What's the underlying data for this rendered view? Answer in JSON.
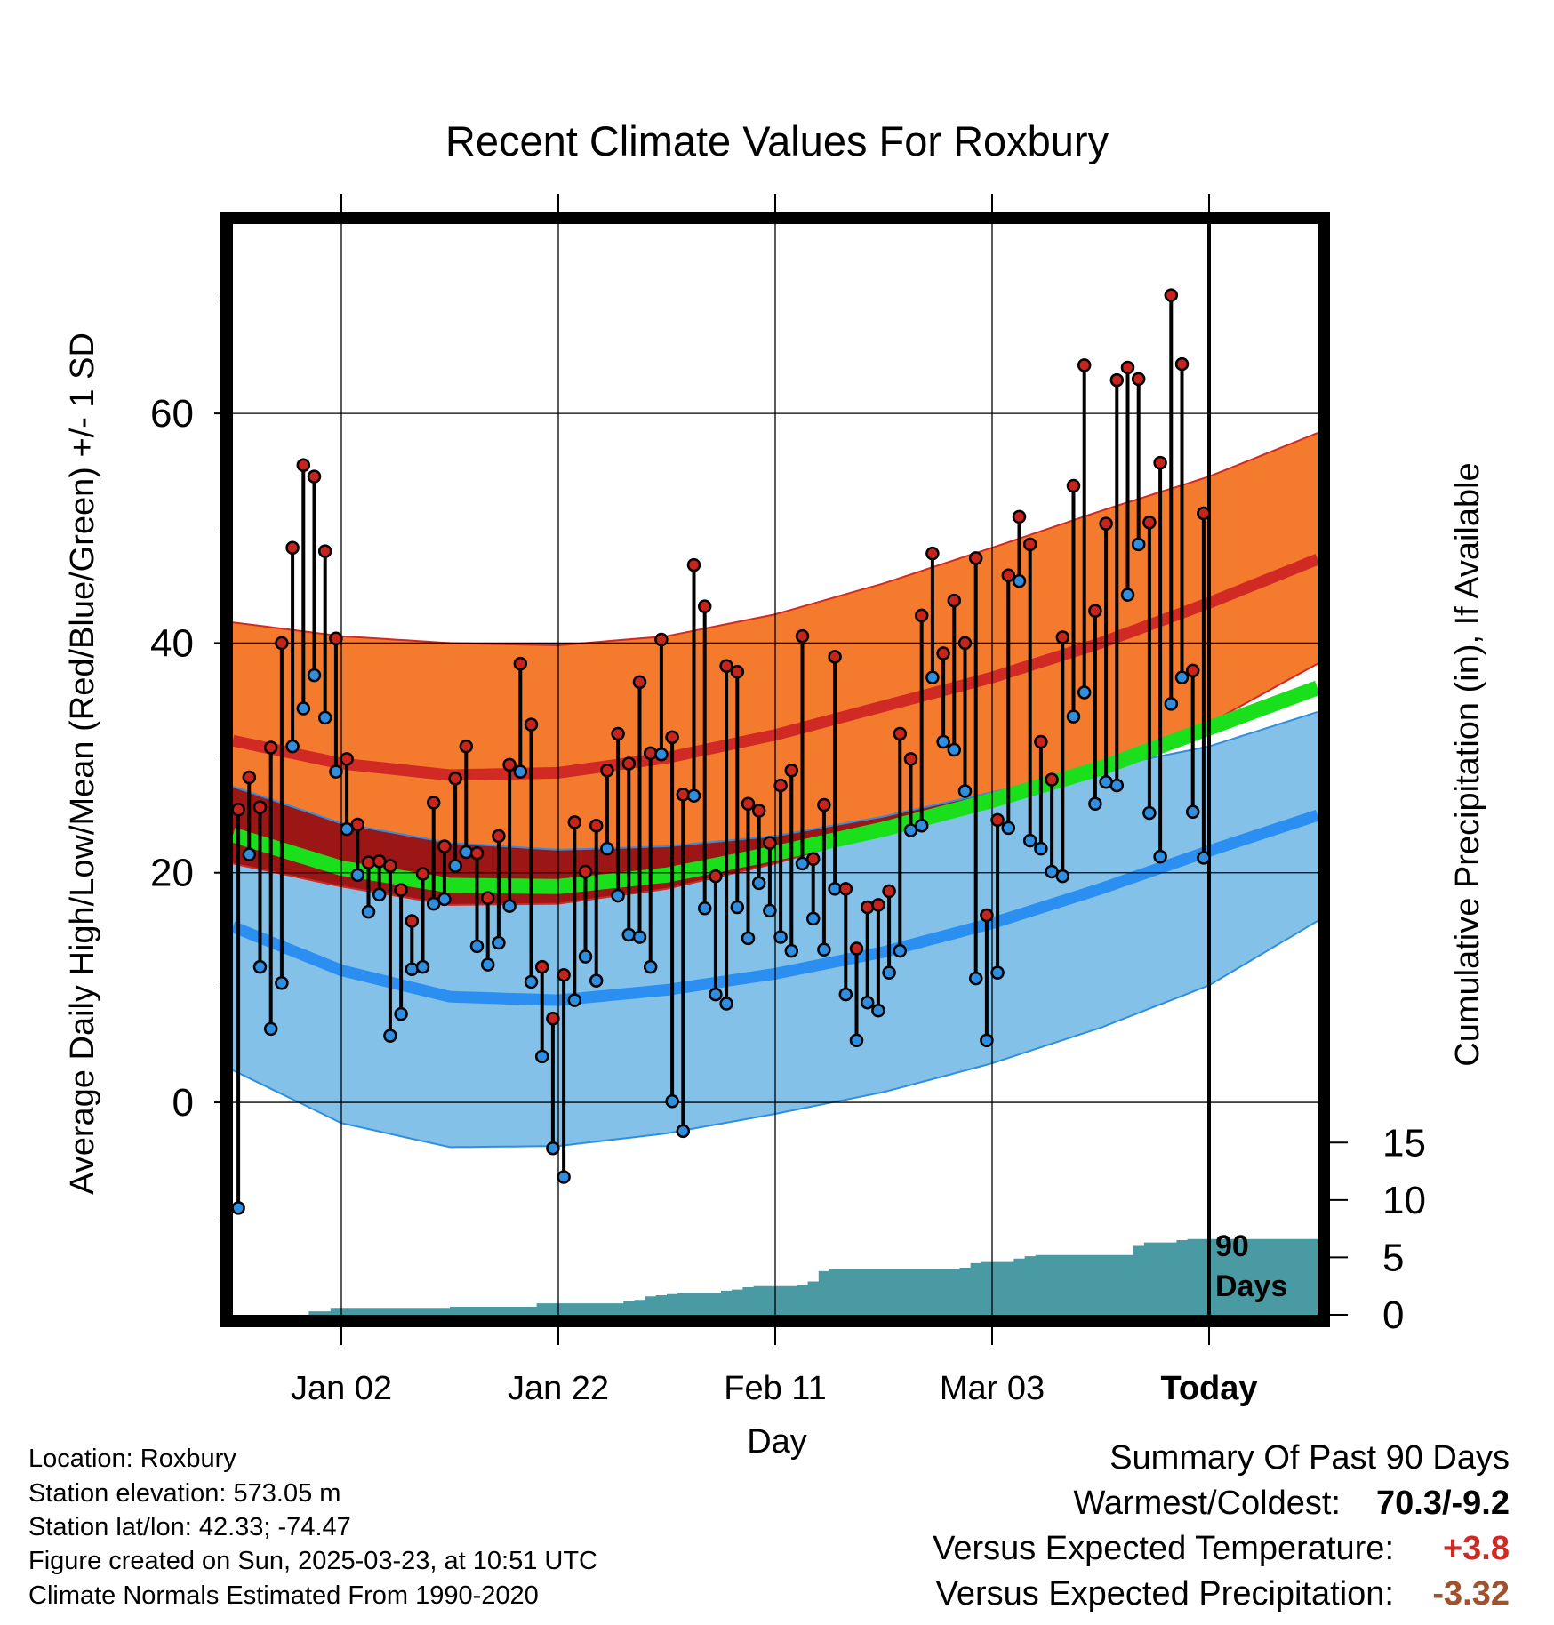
{
  "chart_data": {
    "type": "line",
    "title": "Recent Climate Values For Roxbury",
    "xlabel": "Day",
    "ylabel": "Average Daily High/Low/Mean (Red/Blue/Green) +/- 1 SD",
    "y2label": "Cumulative Precipitation (in), If Available",
    "x_start": "2024-12-23",
    "x_today": "2025-03-23",
    "x_end": "2025-04-02",
    "x_ticks": [
      {
        "date": "2025-01-02",
        "label": "Jan 02"
      },
      {
        "date": "2025-01-22",
        "label": "Jan 22"
      },
      {
        "date": "2025-02-11",
        "label": "Feb 11"
      },
      {
        "date": "2025-03-03",
        "label": "Mar 03"
      },
      {
        "date": "2025-03-23",
        "label": "Today"
      }
    ],
    "ylim": [
      -18.5,
      76.5
    ],
    "y_major_ticks": [
      0,
      20,
      40,
      60
    ],
    "y_minor_ticks": [
      -10,
      10,
      30,
      50,
      70
    ],
    "y2lim": [
      0,
      95
    ],
    "y2_ticks": [
      0,
      5,
      10,
      15
    ],
    "grid": true,
    "today_marker_label": [
      "90",
      "Days"
    ],
    "normals": {
      "days": [
        0,
        10,
        20,
        30,
        40,
        50,
        60,
        70,
        80,
        90,
        100
      ],
      "high_mean": [
        31.5,
        29.5,
        28.5,
        28.7,
        30.0,
        32.0,
        34.5,
        37.0,
        40.0,
        43.5,
        47.3
      ],
      "high_upper": [
        41.8,
        40.6,
        40.0,
        39.8,
        40.6,
        42.5,
        45.2,
        48.3,
        51.5,
        54.5,
        58.3
      ],
      "high_lower": [
        20.8,
        18.8,
        17.2,
        17.3,
        18.6,
        20.8,
        23.6,
        26.6,
        29.6,
        33.0,
        38.2
      ],
      "low_mean": [
        15.3,
        11.5,
        9.2,
        8.9,
        9.8,
        11.2,
        13.1,
        15.6,
        18.6,
        21.9,
        25.0
      ],
      "low_upper": [
        27.5,
        24.3,
        22.6,
        22.0,
        22.3,
        23.2,
        24.9,
        27.0,
        29.1,
        31.0,
        34.0
      ],
      "low_lower": [
        2.8,
        -1.8,
        -3.9,
        -3.8,
        -2.7,
        -1.0,
        0.9,
        3.4,
        6.5,
        10.2,
        15.8
      ],
      "mean": [
        23.3,
        20.4,
        18.9,
        18.8,
        19.8,
        21.7,
        23.8,
        26.3,
        29.1,
        32.6,
        36.1
      ]
    },
    "series": [
      {
        "name": "High",
        "color": "#c8241e",
        "values": [
          25.5,
          28.3,
          25.7,
          30.9,
          40.0,
          48.3,
          55.5,
          54.5,
          48.0,
          40.4,
          29.9,
          24.2,
          20.9,
          21.0,
          20.6,
          18.5,
          15.8,
          19.9,
          26.1,
          22.3,
          28.2,
          31.0,
          21.7,
          17.8,
          23.2,
          29.4,
          38.2,
          32.9,
          11.8,
          7.3,
          11.1,
          24.4,
          20.1,
          24.1,
          28.9,
          32.1,
          29.5,
          36.6,
          30.4,
          40.3,
          31.8,
          26.8,
          46.8,
          43.2,
          19.7,
          38.0,
          37.5,
          26.0,
          25.4,
          22.6,
          27.6,
          28.9,
          40.6,
          21.2,
          25.9,
          38.8,
          18.6,
          13.4,
          17.0,
          17.2,
          18.4,
          32.1,
          29.9,
          42.4,
          47.8,
          39.1,
          43.7,
          40.0,
          47.4,
          16.3,
          24.6,
          45.9,
          51.0,
          48.6,
          31.4,
          28.1,
          40.5,
          53.7,
          64.2,
          42.8,
          50.4,
          62.9,
          64.0,
          63.0,
          50.5,
          55.7,
          70.3,
          64.3,
          37.6,
          51.3
        ]
      },
      {
        "name": "Low",
        "color": "#2f8ee0",
        "values": [
          -9.2,
          21.6,
          11.8,
          6.4,
          10.4,
          31.0,
          34.3,
          37.2,
          33.5,
          28.8,
          23.8,
          19.8,
          16.6,
          18.1,
          5.8,
          7.7,
          11.6,
          11.8,
          17.3,
          17.7,
          20.6,
          21.8,
          13.6,
          12.0,
          13.9,
          17.1,
          28.8,
          10.5,
          4.0,
          -4.0,
          -6.5,
          8.9,
          12.7,
          10.6,
          22.1,
          18.0,
          14.6,
          14.4,
          11.8,
          30.3,
          0.1,
          -2.5,
          26.7,
          16.9,
          9.4,
          8.6,
          17.0,
          14.3,
          19.1,
          16.7,
          14.4,
          13.2,
          20.8,
          16.0,
          13.3,
          18.6,
          9.4,
          5.4,
          8.7,
          8.0,
          11.3,
          13.2,
          23.7,
          24.1,
          37.0,
          31.4,
          30.7,
          27.1,
          10.8,
          5.4,
          11.3,
          23.9,
          45.4,
          22.8,
          22.1,
          20.1,
          19.7,
          33.6,
          35.7,
          26.0,
          27.9,
          27.6,
          44.2,
          48.6,
          25.2,
          21.4,
          34.7,
          37.0,
          25.3,
          21.3
        ]
      }
    ],
    "precip": {
      "days": [
        0,
        6,
        7,
        9,
        19,
        20,
        27,
        28,
        36,
        37,
        38,
        39,
        40,
        41,
        42,
        45,
        46,
        47,
        48,
        49,
        52,
        53,
        54,
        55,
        56,
        66,
        67,
        68,
        69,
        71,
        72,
        73,
        74,
        82,
        83,
        84,
        86,
        87,
        88,
        90,
        100
      ],
      "values": [
        0,
        0,
        0.3,
        0.6,
        0.6,
        0.7,
        0.7,
        1.0,
        1.2,
        1.3,
        1.6,
        1.7,
        1.8,
        1.9,
        1.9,
        2.1,
        2.2,
        2.4,
        2.5,
        2.5,
        2.6,
        2.9,
        3.8,
        4.0,
        4.0,
        4.0,
        4.1,
        4.5,
        4.6,
        4.6,
        4.9,
        5.1,
        5.2,
        5.2,
        6.0,
        6.3,
        6.3,
        6.5,
        6.6,
        6.6,
        6.6
      ]
    }
  },
  "info": {
    "location": "Location: Roxbury",
    "elevation": "Station elevation: 573.05 m",
    "latlon": "Station lat/lon: 42.33; -74.47",
    "created": "Figure created on Sun, 2025-03-23, at 10:51 UTC",
    "normals": "Climate Normals Estimated From 1990-2020"
  },
  "summary": {
    "title": "Summary Of Past 90 Days",
    "warmest_label": "Warmest/Coldest:",
    "warmest_value": "70.3/-9.2",
    "temp_label": "Versus Expected Temperature:",
    "temp_value": "+3.8",
    "temp_color": "#d12a24",
    "precip_label": "Versus Expected Precipitation:",
    "precip_value": "-3.32",
    "precip_color": "#a0522d"
  }
}
